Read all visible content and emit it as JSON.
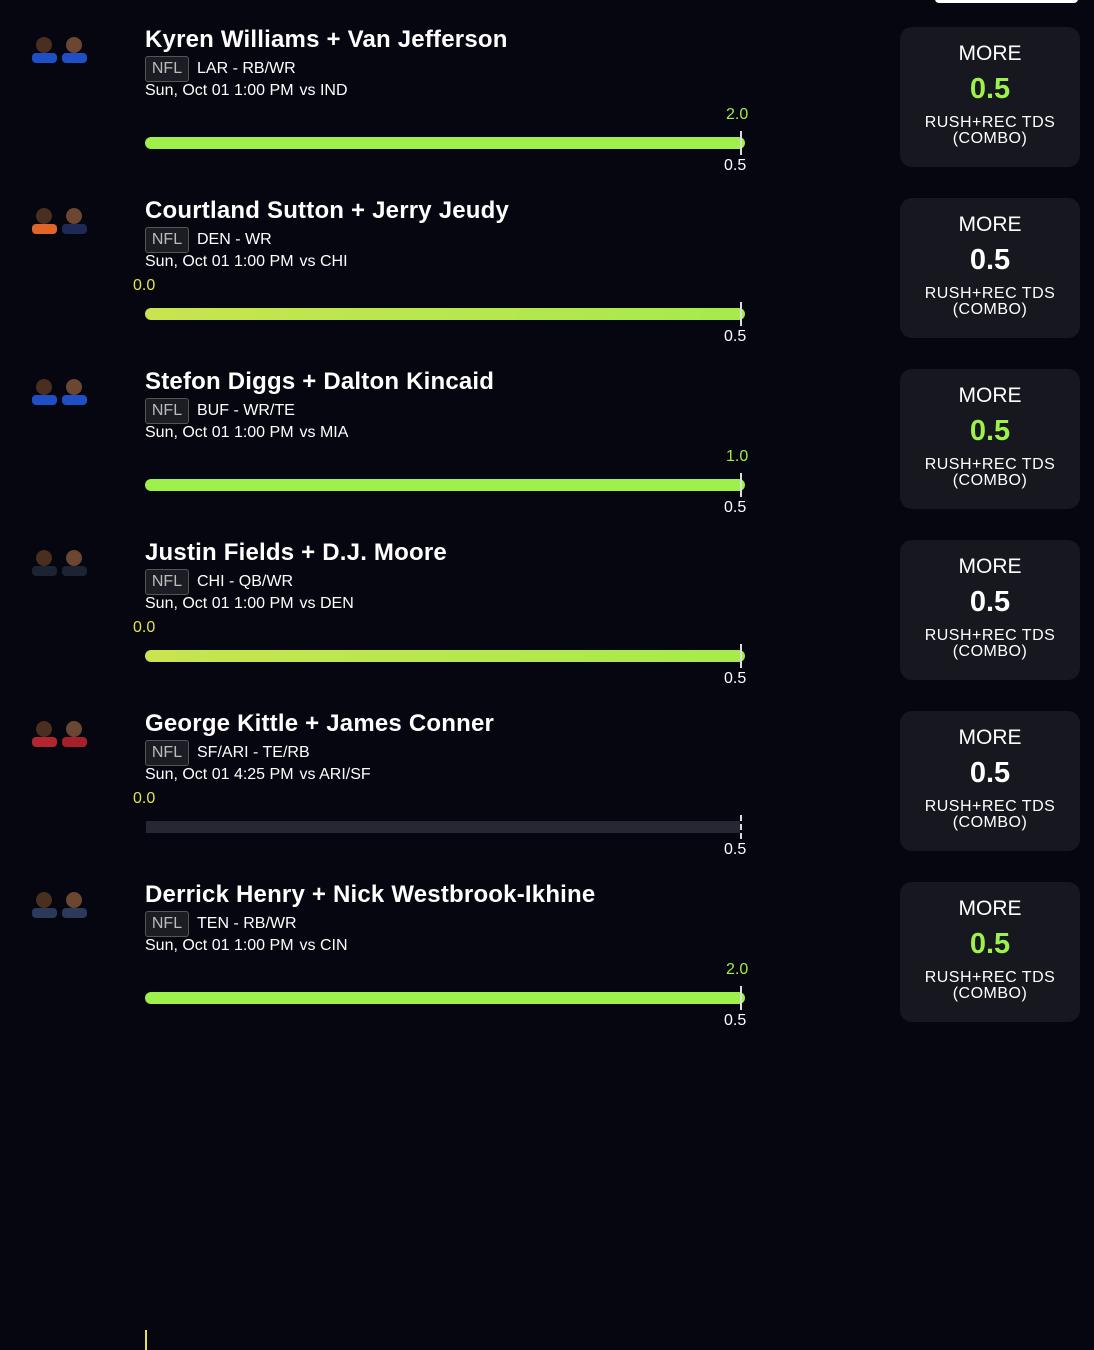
{
  "picks": [
    {
      "players": "Kyren Williams + Van Jefferson",
      "league": "NFL",
      "team_position": "LAR - RB/WR",
      "game_time": "Sun, Oct 01 1:00 PM",
      "opponent": "vs IND",
      "current": "2.0",
      "line": "0.5",
      "card": {
        "direction": "MORE",
        "line": "0.5",
        "stat": "RUSH+REC TDS (COMBO)"
      }
    },
    {
      "players": "Courtland Sutton + Jerry Jeudy",
      "league": "NFL",
      "team_position": "DEN - WR",
      "game_time": "Sun, Oct 01 1:00 PM",
      "opponent": "vs CHI",
      "current": "0.0",
      "line": "0.5",
      "card": {
        "direction": "MORE",
        "line": "0.5",
        "stat": "RUSH+REC TDS (COMBO)"
      }
    },
    {
      "players": "Stefon Diggs + Dalton Kincaid",
      "league": "NFL",
      "team_position": "BUF - WR/TE",
      "game_time": "Sun, Oct 01 1:00 PM",
      "opponent": "vs MIA",
      "current": "1.0",
      "line": "0.5",
      "card": {
        "direction": "MORE",
        "line": "0.5",
        "stat": "RUSH+REC TDS (COMBO)"
      }
    },
    {
      "players": "Justin Fields + D.J. Moore",
      "league": "NFL",
      "team_position": "CHI - QB/WR",
      "game_time": "Sun, Oct 01 1:00 PM",
      "opponent": "vs DEN",
      "current": "0.0",
      "line": "0.5",
      "card": {
        "direction": "MORE",
        "line": "0.5",
        "stat": "RUSH+REC TDS (COMBO)"
      }
    },
    {
      "players": "George Kittle + James Conner",
      "league": "NFL",
      "team_position": "SF/ARI - TE/RB",
      "game_time": "Sun, Oct 01 4:25 PM",
      "opponent": "vs ARI/SF",
      "current": "0.0",
      "line": "0.5",
      "card": {
        "direction": "MORE",
        "line": "0.5",
        "stat": "RUSH+REC TDS (COMBO)"
      }
    },
    {
      "players": "Derrick Henry + Nick Westbrook-Ikhine",
      "league": "NFL",
      "team_position": "TEN - RB/WR",
      "game_time": "Sun, Oct 01 1:00 PM",
      "opponent": "vs CIN",
      "current": "2.0",
      "line": "0.5",
      "card": {
        "direction": "MORE",
        "line": "0.5",
        "stat": "RUSH+REC TDS (COMBO)"
      }
    }
  ]
}
